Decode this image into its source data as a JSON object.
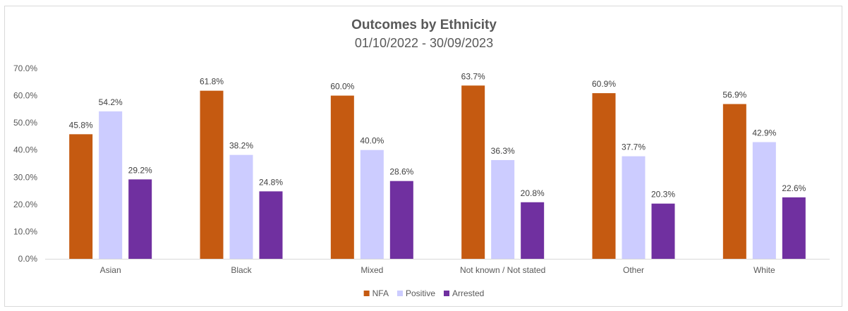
{
  "chart_data": {
    "type": "bar",
    "title": "Outcomes by Ethnicity",
    "subtitle": "01/10/2022 - 30/09/2023",
    "categories": [
      "Asian",
      "Black",
      "Mixed",
      "Not known / Not stated",
      "Other",
      "White"
    ],
    "series": [
      {
        "name": "NFA",
        "color": "#c55a11",
        "values": [
          45.8,
          61.8,
          60.0,
          63.7,
          60.9,
          56.9
        ],
        "labels": [
          "45.8%",
          "61.8%",
          "60.0%",
          "63.7%",
          "60.9%",
          "56.9%"
        ]
      },
      {
        "name": "Positive",
        "color": "#ccccff",
        "values": [
          54.2,
          38.2,
          40.0,
          36.3,
          37.7,
          42.9
        ],
        "labels": [
          "54.2%",
          "38.2%",
          "40.0%",
          "36.3%",
          "37.7%",
          "42.9%"
        ]
      },
      {
        "name": "Arrested",
        "color": "#7030a0",
        "values": [
          29.2,
          24.8,
          28.6,
          20.8,
          20.3,
          22.6
        ],
        "labels": [
          "29.2%",
          "24.8%",
          "28.6%",
          "20.8%",
          "20.3%",
          "22.6%"
        ]
      }
    ],
    "ylim": [
      0,
      70
    ],
    "yticks": [
      "0.0%",
      "10.0%",
      "20.0%",
      "30.0%",
      "40.0%",
      "50.0%",
      "60.0%",
      "70.0%"
    ],
    "xlabel": "",
    "ylabel": "",
    "grid": false,
    "legend_position": "bottom"
  }
}
